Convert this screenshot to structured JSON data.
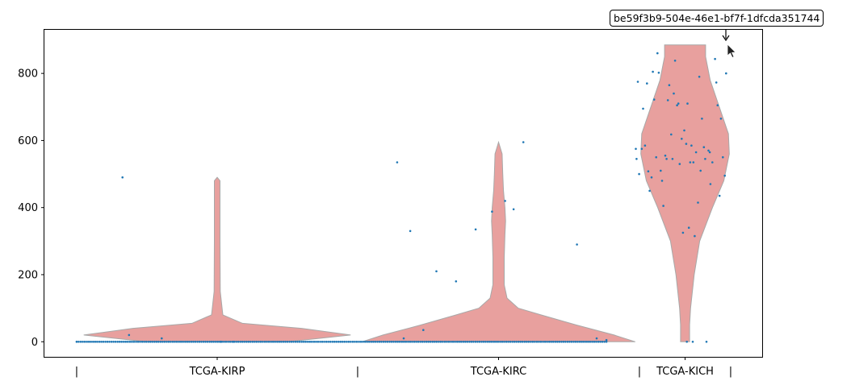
{
  "chart_data": {
    "type": "violin",
    "title": "",
    "xlabel": "",
    "ylabel": "",
    "ylim": [
      -45,
      930
    ],
    "yticks": [
      0,
      200,
      400,
      600,
      800
    ],
    "categories": [
      "TCGA-KIRP",
      "TCGA-KIRC",
      "TCGA-KICH"
    ],
    "group_separators": [
      "|",
      "|",
      "|",
      "|"
    ],
    "colors": {
      "violin_fill": "#e8a09e",
      "violin_edge": "#a8a8a8",
      "points": "#1f77b4"
    },
    "violins": [
      {
        "name": "TCGA-KIRP",
        "min": 0,
        "max": 490,
        "density_profile": [
          [
            0,
            0.5
          ],
          [
            20,
            0.95
          ],
          [
            40,
            0.6
          ],
          [
            55,
            0.18
          ],
          [
            80,
            0.04
          ],
          [
            150,
            0.022
          ],
          [
            300,
            0.02
          ],
          [
            480,
            0.02
          ],
          [
            490,
            0.0
          ]
        ]
      },
      {
        "name": "TCGA-KIRC",
        "min": 0,
        "max": 595,
        "density_profile": [
          [
            0,
            0.97
          ],
          [
            20,
            0.82
          ],
          [
            50,
            0.55
          ],
          [
            80,
            0.3
          ],
          [
            100,
            0.14
          ],
          [
            130,
            0.06
          ],
          [
            170,
            0.04
          ],
          [
            250,
            0.04
          ],
          [
            320,
            0.045
          ],
          [
            360,
            0.05
          ],
          [
            400,
            0.045
          ],
          [
            450,
            0.035
          ],
          [
            500,
            0.03
          ],
          [
            560,
            0.025
          ],
          [
            595,
            0.0
          ]
        ]
      },
      {
        "name": "TCGA-KICH",
        "min": 0,
        "max": 885,
        "density_profile": [
          [
            0,
            0.1
          ],
          [
            50,
            0.1
          ],
          [
            100,
            0.12
          ],
          [
            200,
            0.2
          ],
          [
            300,
            0.32
          ],
          [
            400,
            0.6
          ],
          [
            480,
            0.85
          ],
          [
            560,
            0.97
          ],
          [
            620,
            0.95
          ],
          [
            700,
            0.75
          ],
          [
            780,
            0.55
          ],
          [
            850,
            0.45
          ],
          [
            885,
            0.45
          ]
        ]
      }
    ],
    "strip_points": [
      {
        "x": 0.0,
        "y": 0
      },
      {
        "x": 0.07,
        "y": 490
      },
      {
        "x": 0.08,
        "y": 20
      },
      {
        "x": 0.13,
        "y": 10
      },
      {
        "x": 0.22,
        "y": 0
      },
      {
        "x": 0.24,
        "y": 0
      },
      {
        "x": 0.49,
        "y": 535
      },
      {
        "x": 0.5,
        "y": 10
      },
      {
        "x": 0.51,
        "y": 330
      },
      {
        "x": 0.53,
        "y": 35
      },
      {
        "x": 0.55,
        "y": 210
      },
      {
        "x": 0.58,
        "y": 180
      },
      {
        "x": 0.61,
        "y": 335
      },
      {
        "x": 0.635,
        "y": 388
      },
      {
        "x": 0.655,
        "y": 420
      },
      {
        "x": 0.668,
        "y": 395
      },
      {
        "x": 0.683,
        "y": 595
      },
      {
        "x": 0.765,
        "y": 290
      },
      {
        "x": 0.795,
        "y": 10
      },
      {
        "x": 0.81,
        "y": 5
      },
      {
        "x": 0.855,
        "y": 575
      },
      {
        "x": 0.856,
        "y": 545
      },
      {
        "x": 0.858,
        "y": 775
      },
      {
        "x": 0.86,
        "y": 500
      },
      {
        "x": 0.864,
        "y": 575
      },
      {
        "x": 0.866,
        "y": 695
      },
      {
        "x": 0.869,
        "y": 585
      },
      {
        "x": 0.872,
        "y": 770
      },
      {
        "x": 0.874,
        "y": 508
      },
      {
        "x": 0.876,
        "y": 450
      },
      {
        "x": 0.879,
        "y": 490
      },
      {
        "x": 0.881,
        "y": 805
      },
      {
        "x": 0.883,
        "y": 722
      },
      {
        "x": 0.886,
        "y": 550
      },
      {
        "x": 0.888,
        "y": 860
      },
      {
        "x": 0.89,
        "y": 802
      },
      {
        "x": 0.893,
        "y": 510
      },
      {
        "x": 0.895,
        "y": 480
      },
      {
        "x": 0.897,
        "y": 405
      },
      {
        "x": 0.9,
        "y": 555
      },
      {
        "x": 0.902,
        "y": 545
      },
      {
        "x": 0.904,
        "y": 720
      },
      {
        "x": 0.906,
        "y": 765
      },
      {
        "x": 0.909,
        "y": 618
      },
      {
        "x": 0.911,
        "y": 545
      },
      {
        "x": 0.913,
        "y": 740
      },
      {
        "x": 0.915,
        "y": 838
      },
      {
        "x": 0.918,
        "y": 705
      },
      {
        "x": 0.92,
        "y": 710
      },
      {
        "x": 0.922,
        "y": 530
      },
      {
        "x": 0.925,
        "y": 605
      },
      {
        "x": 0.927,
        "y": 325
      },
      {
        "x": 0.929,
        "y": 630
      },
      {
        "x": 0.932,
        "y": 590
      },
      {
        "x": 0.934,
        "y": 710
      },
      {
        "x": 0.936,
        "y": 340
      },
      {
        "x": 0.938,
        "y": 535
      },
      {
        "x": 0.94,
        "y": 585
      },
      {
        "x": 0.943,
        "y": 535
      },
      {
        "x": 0.945,
        "y": 315
      },
      {
        "x": 0.947,
        "y": 565
      },
      {
        "x": 0.95,
        "y": 415
      },
      {
        "x": 0.952,
        "y": 790
      },
      {
        "x": 0.954,
        "y": 510
      },
      {
        "x": 0.956,
        "y": 665
      },
      {
        "x": 0.959,
        "y": 580
      },
      {
        "x": 0.961,
        "y": 545
      },
      {
        "x": 0.963,
        "y": 0
      },
      {
        "x": 0.966,
        "y": 570
      },
      {
        "x": 0.968,
        "y": 565
      },
      {
        "x": 0.969,
        "y": 470
      },
      {
        "x": 0.972,
        "y": 535
      },
      {
        "x": 0.976,
        "y": 843
      },
      {
        "x": 0.978,
        "y": 773
      },
      {
        "x": 0.98,
        "y": 705
      },
      {
        "x": 0.983,
        "y": 435
      },
      {
        "x": 0.985,
        "y": 665
      },
      {
        "x": 0.988,
        "y": 550
      },
      {
        "x": 0.991,
        "y": 495
      },
      {
        "x": 0.993,
        "y": 800
      },
      {
        "x": 0.933,
        "y": 0
      },
      {
        "x": 0.942,
        "y": 0
      }
    ],
    "zero_point_count": 260,
    "zero_point_range": [
      0.0,
      0.81
    ],
    "grid": false,
    "legend": "none",
    "annotation": "be59f3b9-504e-46e1-bf7f-1dfcda351744"
  }
}
